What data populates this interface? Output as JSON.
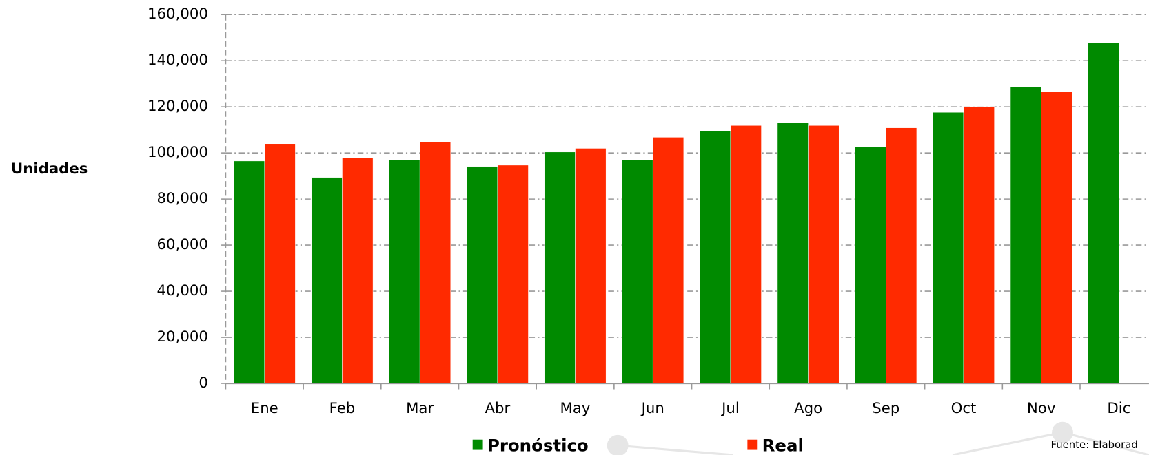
{
  "chart_data": {
    "type": "bar",
    "y_label": "Unidades",
    "categories": [
      "Ene",
      "Feb",
      "Mar",
      "Abr",
      "May",
      "Jun",
      "Jul",
      "Ago",
      "Sep",
      "Oct",
      "Nov",
      "Dic"
    ],
    "series": [
      {
        "name": "Pronóstico",
        "color": "#008a00",
        "values": [
          96500,
          89400,
          97000,
          94100,
          100400,
          97000,
          109600,
          113100,
          102700,
          117600,
          128600,
          147700
        ]
      },
      {
        "name": "Real",
        "color": "#ff2a00",
        "values": [
          104000,
          97900,
          104900,
          94700,
          102000,
          106800,
          111900,
          111900,
          110900,
          120100,
          126400,
          null
        ]
      }
    ],
    "ylim": [
      0,
      160000
    ],
    "yticks": [
      0,
      {
        "value": 20000,
        "label": "20,000"
      },
      {
        "value": 40000,
        "label": "40,000"
      },
      {
        "value": 60000,
        "label": "60,000"
      },
      {
        "value": 80000,
        "label": "80,000"
      },
      {
        "value": 100000,
        "label": "100,000"
      },
      {
        "value": 120000,
        "label": "120,000"
      },
      {
        "value": 140000,
        "label": "140,000"
      },
      {
        "value": 160000,
        "label": "160,000"
      }
    ],
    "grid": true,
    "legend": "bottom",
    "source": "Fuente: Elaborad"
  }
}
